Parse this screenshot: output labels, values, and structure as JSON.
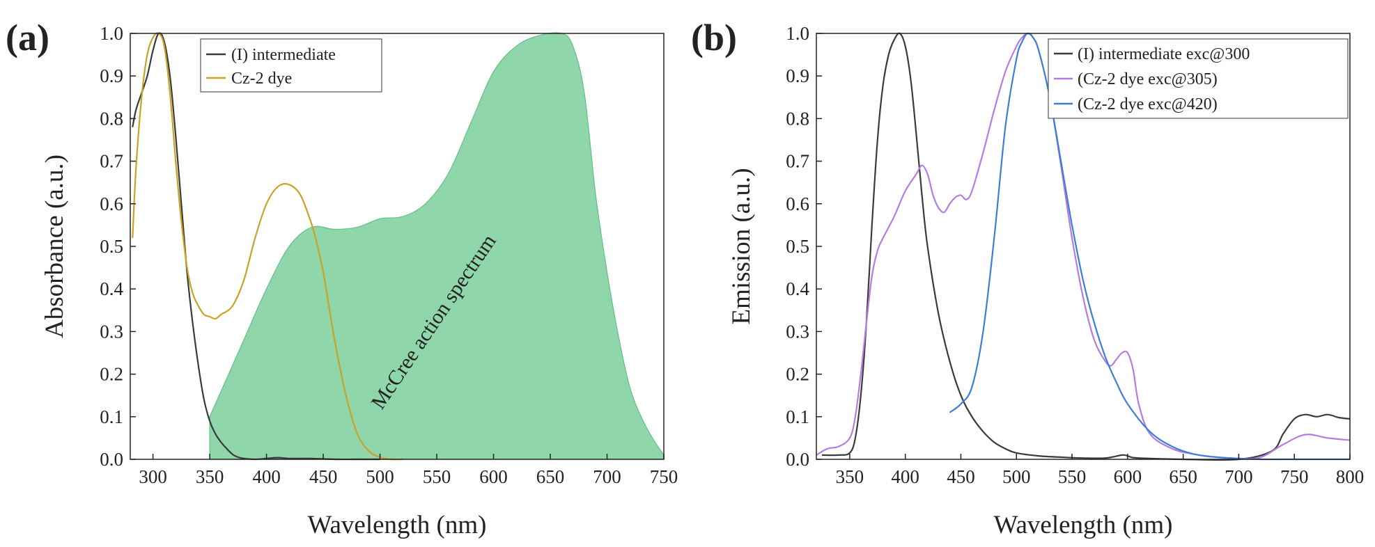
{
  "chart_data": [
    {
      "panel_label": "(a)",
      "type": "line",
      "xlabel": "Wavelength (nm)",
      "ylabel": "Absorbance (a.u.)",
      "xlim": [
        280,
        750
      ],
      "ylim": [
        0,
        1.0
      ],
      "x_ticks": [
        300,
        350,
        400,
        450,
        500,
        550,
        600,
        650,
        700,
        750
      ],
      "y_ticks": [
        0.0,
        0.1,
        0.2,
        0.3,
        0.4,
        0.5,
        0.6,
        0.7,
        0.8,
        0.9,
        1.0
      ],
      "x_tick_labels": [
        "300",
        "350",
        "400",
        "450",
        "500",
        "550",
        "600",
        "650",
        "700",
        "750"
      ],
      "y_tick_labels": [
        "0.0",
        "0.1",
        "0.2",
        "0.3",
        "0.4",
        "0.5",
        "0.6",
        "0.7",
        "0.8",
        "0.9",
        "1.0"
      ],
      "legend": [
        "(I) intermediate",
        "Cz-2 dye"
      ],
      "legend_location": "top-center",
      "annotation": "McCree action spectrum",
      "area": {
        "name": "McCree action spectrum",
        "color": "#8fd6ab",
        "x": [
          350,
          360,
          380,
          400,
          420,
          440,
          460,
          480,
          500,
          520,
          540,
          560,
          580,
          600,
          620,
          640,
          660,
          670,
          680,
          690,
          700,
          710,
          720,
          730,
          740,
          750
        ],
        "y": [
          0.1,
          0.16,
          0.28,
          0.4,
          0.5,
          0.545,
          0.54,
          0.545,
          0.565,
          0.57,
          0.6,
          0.67,
          0.79,
          0.91,
          0.97,
          0.995,
          1.0,
          0.97,
          0.86,
          0.62,
          0.44,
          0.29,
          0.17,
          0.1,
          0.05,
          0.01
        ]
      },
      "series": [
        {
          "name": "(I) intermediate",
          "color": "#3a3a3a",
          "x": [
            282,
            285,
            290,
            295,
            300,
            305,
            310,
            315,
            320,
            325,
            330,
            335,
            340,
            345,
            350,
            355,
            360,
            365,
            370,
            375,
            380,
            390,
            400,
            410,
            420,
            440,
            460,
            480,
            500
          ],
          "y": [
            0.78,
            0.82,
            0.86,
            0.9,
            0.96,
            1.0,
            0.98,
            0.9,
            0.76,
            0.6,
            0.44,
            0.32,
            0.22,
            0.14,
            0.09,
            0.06,
            0.04,
            0.025,
            0.012,
            0.005,
            0.002,
            0.0,
            0.002,
            0.004,
            0.002,
            0.002,
            0.0,
            0.0,
            0.0
          ]
        },
        {
          "name": "Cz-2 dye",
          "color": "#c9a227",
          "x": [
            282,
            285,
            290,
            295,
            300,
            305,
            310,
            315,
            320,
            325,
            330,
            335,
            340,
            345,
            350,
            355,
            360,
            370,
            380,
            390,
            400,
            410,
            420,
            430,
            440,
            445,
            450,
            455,
            460,
            470,
            480,
            490,
            500,
            510,
            520
          ],
          "y": [
            0.52,
            0.68,
            0.85,
            0.95,
            0.99,
            1.0,
            0.97,
            0.86,
            0.7,
            0.56,
            0.45,
            0.39,
            0.36,
            0.34,
            0.335,
            0.33,
            0.34,
            0.36,
            0.42,
            0.52,
            0.6,
            0.64,
            0.645,
            0.62,
            0.55,
            0.5,
            0.44,
            0.36,
            0.28,
            0.15,
            0.06,
            0.02,
            0.005,
            0.0,
            0.0
          ]
        }
      ]
    },
    {
      "panel_label": "(b)",
      "type": "line",
      "xlabel": "Wavelength (nm)",
      "ylabel": "Emission (a.u.)",
      "xlim": [
        320,
        800
      ],
      "ylim": [
        0,
        1.0
      ],
      "x_ticks": [
        350,
        400,
        450,
        500,
        550,
        600,
        650,
        700,
        750,
        800
      ],
      "y_ticks": [
        0.0,
        0.1,
        0.2,
        0.3,
        0.4,
        0.5,
        0.6,
        0.7,
        0.8,
        0.9,
        1.0
      ],
      "x_tick_labels": [
        "350",
        "400",
        "450",
        "500",
        "550",
        "600",
        "650",
        "700",
        "750",
        "800"
      ],
      "y_tick_labels": [
        "0.0",
        "0.1",
        "0.2",
        "0.3",
        "0.4",
        "0.5",
        "0.6",
        "0.7",
        "0.8",
        "0.9",
        "1.0"
      ],
      "legend": [
        "(I) intermediate exc@300",
        "(Cz-2 dye exc@305)",
        "(Cz-2 dye exc@420)"
      ],
      "legend_location": "top-right",
      "series": [
        {
          "name": "(I) intermediate exc@300",
          "color": "#3a3a3a",
          "x": [
            325,
            340,
            350,
            355,
            360,
            365,
            370,
            375,
            380,
            385,
            390,
            395,
            400,
            405,
            410,
            415,
            420,
            430,
            440,
            450,
            460,
            470,
            480,
            490,
            500,
            520,
            540,
            560,
            580,
            595,
            600,
            605,
            620,
            650,
            700,
            730,
            740,
            750,
            760,
            770,
            780,
            790,
            800
          ],
          "y": [
            0.01,
            0.01,
            0.015,
            0.05,
            0.15,
            0.32,
            0.55,
            0.75,
            0.88,
            0.95,
            0.985,
            1.0,
            0.97,
            0.89,
            0.76,
            0.62,
            0.5,
            0.34,
            0.23,
            0.15,
            0.1,
            0.065,
            0.04,
            0.025,
            0.015,
            0.008,
            0.005,
            0.003,
            0.003,
            0.01,
            0.008,
            0.004,
            0.002,
            0.0,
            0.0,
            0.02,
            0.06,
            0.095,
            0.105,
            0.1,
            0.105,
            0.098,
            0.095
          ]
        },
        {
          "name": "(Cz-2 dye exc@305)",
          "color": "#b77be0",
          "x": [
            320,
            330,
            340,
            350,
            355,
            360,
            365,
            370,
            375,
            380,
            390,
            400,
            410,
            415,
            420,
            425,
            430,
            435,
            440,
            445,
            450,
            455,
            460,
            470,
            480,
            490,
            500,
            505,
            510,
            515,
            520,
            530,
            540,
            550,
            560,
            570,
            580,
            585,
            590,
            595,
            600,
            605,
            610,
            620,
            640,
            660,
            680,
            700,
            720,
            740,
            760,
            780,
            800
          ],
          "y": [
            0.01,
            0.025,
            0.03,
            0.05,
            0.1,
            0.2,
            0.32,
            0.43,
            0.49,
            0.52,
            0.57,
            0.63,
            0.67,
            0.69,
            0.67,
            0.62,
            0.59,
            0.58,
            0.6,
            0.615,
            0.62,
            0.61,
            0.63,
            0.72,
            0.82,
            0.91,
            0.97,
            0.99,
            1.0,
            0.99,
            0.96,
            0.85,
            0.69,
            0.52,
            0.38,
            0.28,
            0.23,
            0.22,
            0.235,
            0.25,
            0.25,
            0.21,
            0.13,
            0.06,
            0.025,
            0.012,
            0.005,
            0.002,
            0.005,
            0.035,
            0.058,
            0.05,
            0.045
          ]
        },
        {
          "name": "(Cz-2 dye exc@420)",
          "color": "#3c7ed6",
          "x": [
            440,
            450,
            460,
            470,
            480,
            490,
            500,
            505,
            510,
            515,
            520,
            530,
            540,
            550,
            560,
            570,
            580,
            590,
            600,
            620,
            640,
            660,
            680,
            700,
            720,
            740,
            760,
            780,
            800
          ],
          "y": [
            0.11,
            0.13,
            0.17,
            0.3,
            0.52,
            0.78,
            0.94,
            0.98,
            1.0,
            0.99,
            0.96,
            0.85,
            0.7,
            0.55,
            0.42,
            0.32,
            0.24,
            0.18,
            0.13,
            0.065,
            0.03,
            0.012,
            0.005,
            0.002,
            0.0,
            0.0,
            0.0,
            0.0,
            0.0
          ]
        }
      ]
    }
  ]
}
